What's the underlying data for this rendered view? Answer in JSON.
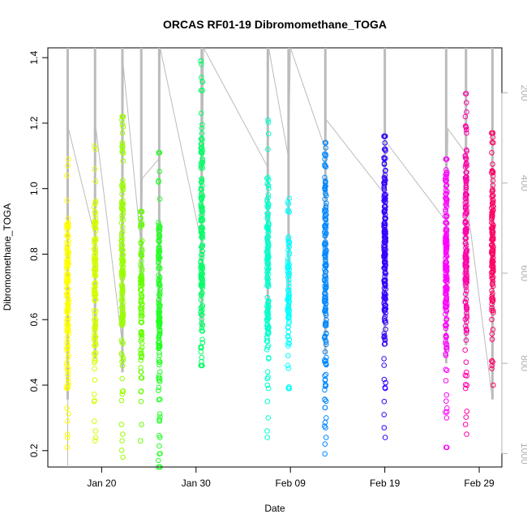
{
  "chart_data": {
    "type": "scatter",
    "title": "ORCAS RF01-19 Dibromomethane_TOGA",
    "xlabel": "Date",
    "ylabel": "Dibromomethane_TOGA",
    "x_ticks": [
      "Jan 20",
      "Jan 30",
      "Feb 09",
      "Feb 19",
      "Feb 29"
    ],
    "x_tick_days": [
      20,
      30,
      40,
      50,
      60
    ],
    "xlim_days": [
      14.3,
      62.4
    ],
    "x_day_origin": "Jan 00",
    "ylim": [
      0.15,
      1.43
    ],
    "y_ticks": [
      0.2,
      0.4,
      0.6,
      0.8,
      1.0,
      1.2,
      1.4
    ],
    "y_tick_labels": [
      "0.2",
      "0.4",
      "0.6",
      "0.8",
      "1.0",
      "1.2",
      "1.4"
    ],
    "right_axis": {
      "ticks": [
        200,
        400,
        600,
        800,
        1000
      ],
      "range_top_to_bottom": [
        100,
        1030
      ],
      "color": "#b0b0b0"
    },
    "grid": false,
    "altitude_trace_color": "#bbbbbb",
    "altitude_trace_vertices": [
      [
        16.4,
        1030
      ],
      [
        16.4,
        1030
      ],
      [
        16.5,
        280
      ],
      [
        19.3,
        520
      ],
      [
        19.4,
        280
      ],
      [
        22.2,
        760
      ],
      [
        22.3,
        140
      ],
      [
        24.2,
        545
      ],
      [
        24.3,
        390
      ],
      [
        26.1,
        345
      ],
      [
        26.2,
        100
      ],
      [
        30.6,
        535
      ],
      [
        30.8,
        100
      ],
      [
        37.6,
        365
      ],
      [
        37.7,
        100
      ],
      [
        39.8,
        345
      ],
      [
        40.0,
        100
      ],
      [
        43.7,
        325
      ],
      [
        43.8,
        260
      ],
      [
        49.8,
        420
      ],
      [
        50.0,
        305
      ],
      [
        56.5,
        485
      ],
      [
        56.7,
        280
      ],
      [
        58.6,
        335
      ],
      [
        58.8,
        460
      ],
      [
        61.4,
        880
      ]
    ],
    "altitude_spikes": [
      [
        16.4,
        100,
        880
      ],
      [
        19.3,
        100,
        790
      ],
      [
        22.2,
        100,
        820
      ],
      [
        24.2,
        100,
        620
      ],
      [
        26.1,
        100,
        700
      ],
      [
        30.6,
        100,
        720
      ],
      [
        37.6,
        100,
        700
      ],
      [
        39.8,
        100,
        680
      ],
      [
        43.7,
        100,
        780
      ],
      [
        50.0,
        100,
        750
      ],
      [
        56.5,
        100,
        800
      ],
      [
        58.6,
        100,
        760
      ],
      [
        61.4,
        100,
        880
      ]
    ],
    "series": [
      {
        "day": 16.4,
        "color": "#ffff00",
        "n": 130,
        "ymin": 0.21,
        "ymax": 1.09,
        "center": 0.68,
        "spread": 0.14,
        "outliers": [
          0.21,
          0.24,
          0.25,
          0.29,
          0.33,
          0.39,
          0.41,
          1.04,
          1.07,
          1.09
        ]
      },
      {
        "day": 19.3,
        "color": "#d4ff00",
        "n": 120,
        "ymin": 0.23,
        "ymax": 1.13,
        "center": 0.72,
        "spread": 0.16,
        "outliers": [
          0.23,
          0.24,
          0.26,
          0.29,
          0.35,
          1.06,
          1.12,
          1.13
        ]
      },
      {
        "day": 22.2,
        "color": "#99ff00",
        "n": 140,
        "ymin": 0.18,
        "ymax": 1.22,
        "center": 0.78,
        "spread": 0.2,
        "outliers": [
          0.18,
          0.23,
          0.25,
          0.28,
          1.17,
          1.21,
          1.22
        ]
      },
      {
        "day": 24.2,
        "color": "#66ff00",
        "n": 100,
        "ymin": 0.23,
        "ymax": 0.93,
        "center": 0.66,
        "spread": 0.13,
        "outliers": [
          0.23,
          0.28,
          0.35,
          0.38,
          0.91,
          0.93
        ]
      },
      {
        "day": 26.1,
        "color": "#22ff22",
        "n": 140,
        "ymin": 0.15,
        "ymax": 1.11,
        "center": 0.62,
        "spread": 0.17,
        "outliers": [
          0.15,
          0.17,
          0.19,
          0.24,
          0.29,
          1.02,
          1.11
        ]
      },
      {
        "day": 30.6,
        "color": "#00ff66",
        "n": 150,
        "ymin": 0.46,
        "ymax": 1.39,
        "center": 0.85,
        "spread": 0.2,
        "outliers": [
          0.46,
          0.53,
          1.23,
          1.3,
          1.34,
          1.38,
          1.39
        ]
      },
      {
        "day": 37.6,
        "color": "#00ffcc",
        "n": 140,
        "ymin": 0.24,
        "ymax": 1.21,
        "center": 0.76,
        "spread": 0.16,
        "outliers": [
          0.24,
          0.26,
          0.3,
          0.35,
          0.39,
          0.4,
          1.12,
          1.21
        ]
      },
      {
        "day": 39.8,
        "color": "#00ffff",
        "n": 80,
        "ymin": 0.39,
        "ymax": 0.97,
        "center": 0.7,
        "spread": 0.11,
        "outliers": [
          0.39,
          0.46,
          0.52,
          0.93,
          0.97
        ]
      },
      {
        "day": 43.7,
        "color": "#0088ff",
        "n": 150,
        "ymin": 0.19,
        "ymax": 1.14,
        "center": 0.72,
        "spread": 0.2,
        "outliers": [
          0.19,
          0.22,
          0.24,
          0.27,
          0.3,
          1.1,
          1.14
        ]
      },
      {
        "day": 50.0,
        "color": "#3300ff",
        "n": 170,
        "ymin": 0.24,
        "ymax": 1.16,
        "center": 0.82,
        "spread": 0.17,
        "outliers": [
          0.24,
          0.27,
          0.31,
          0.35,
          0.39,
          1.12,
          1.16
        ]
      },
      {
        "day": 56.5,
        "color": "#ff00ff",
        "n": 160,
        "ymin": 0.21,
        "ymax": 1.09,
        "center": 0.77,
        "spread": 0.16,
        "outliers": [
          0.21,
          0.3,
          0.33,
          0.37,
          1.05,
          1.09
        ]
      },
      {
        "day": 58.6,
        "color": "#ff00aa",
        "n": 150,
        "ymin": 0.25,
        "ymax": 1.29,
        "center": 0.83,
        "spread": 0.18,
        "outliers": [
          0.25,
          0.28,
          0.32,
          0.39,
          0.43,
          1.18,
          1.22,
          1.29
        ]
      },
      {
        "day": 61.4,
        "color": "#ff0066",
        "n": 130,
        "ymin": 0.4,
        "ymax": 1.17,
        "center": 0.82,
        "spread": 0.14,
        "outliers": [
          0.4,
          0.54,
          0.57,
          1.11,
          1.14,
          1.17
        ]
      }
    ]
  }
}
